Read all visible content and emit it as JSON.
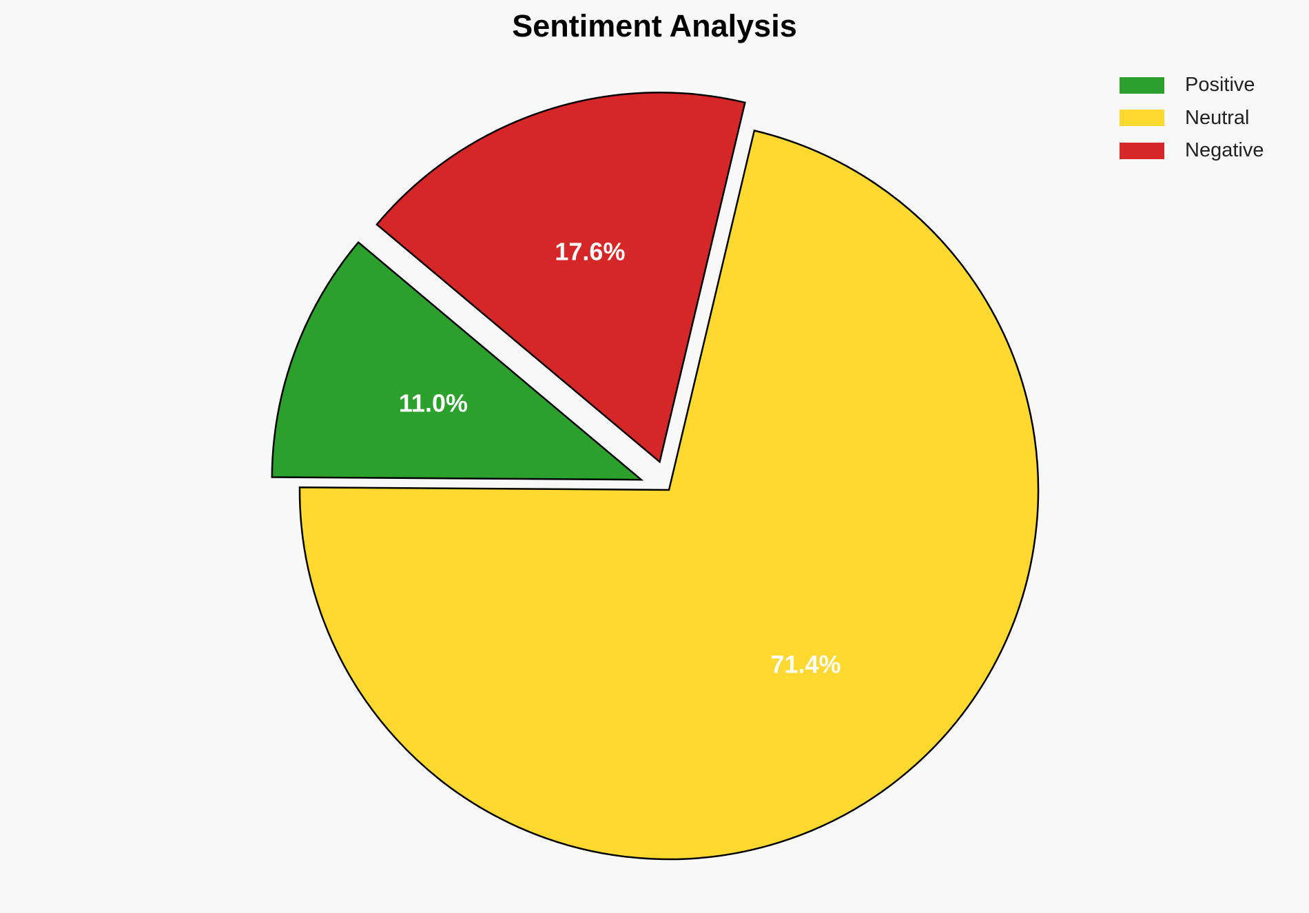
{
  "chart_data": {
    "type": "pie",
    "title": "Sentiment Analysis",
    "categories": [
      "Positive",
      "Neutral",
      "Negative"
    ],
    "values": [
      11.0,
      71.4,
      17.6
    ],
    "labels": [
      "11.0%",
      "71.4%",
      "17.6%"
    ],
    "colors": [
      "#2ca02c",
      "#ffd92f",
      "#d62728"
    ],
    "explode": [
      0.08,
      0,
      0.08
    ],
    "start_angle": 140,
    "edge_color": "#000000",
    "label_color": "#ffffff",
    "legend_placement": "top-right"
  },
  "background": "#f8f8f8"
}
